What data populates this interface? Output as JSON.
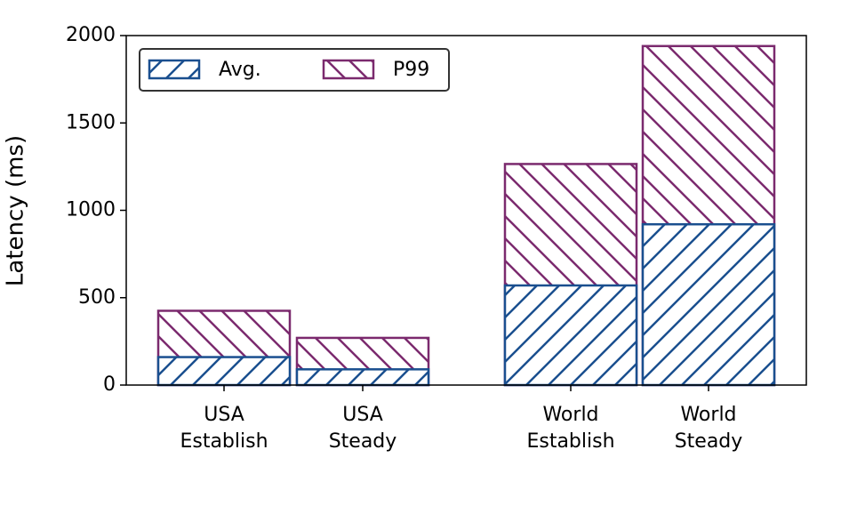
{
  "chart_data": {
    "type": "bar",
    "categories": [
      "USA\nEstablish",
      "USA\nSteady",
      "World\nEstablish",
      "World\nSteady"
    ],
    "series": [
      {
        "name": "P99",
        "color": "#7b2a6e",
        "values": [
          425,
          270,
          1265,
          1940
        ]
      },
      {
        "name": "Avg.",
        "color": "#1a4f8f",
        "values": [
          160,
          90,
          570,
          920
        ]
      }
    ],
    "y_label": "Latency (ms)",
    "ylim": [
      0,
      2000
    ],
    "yticks": [
      0,
      500,
      1000,
      1500,
      2000
    ],
    "legend": "upper left"
  }
}
